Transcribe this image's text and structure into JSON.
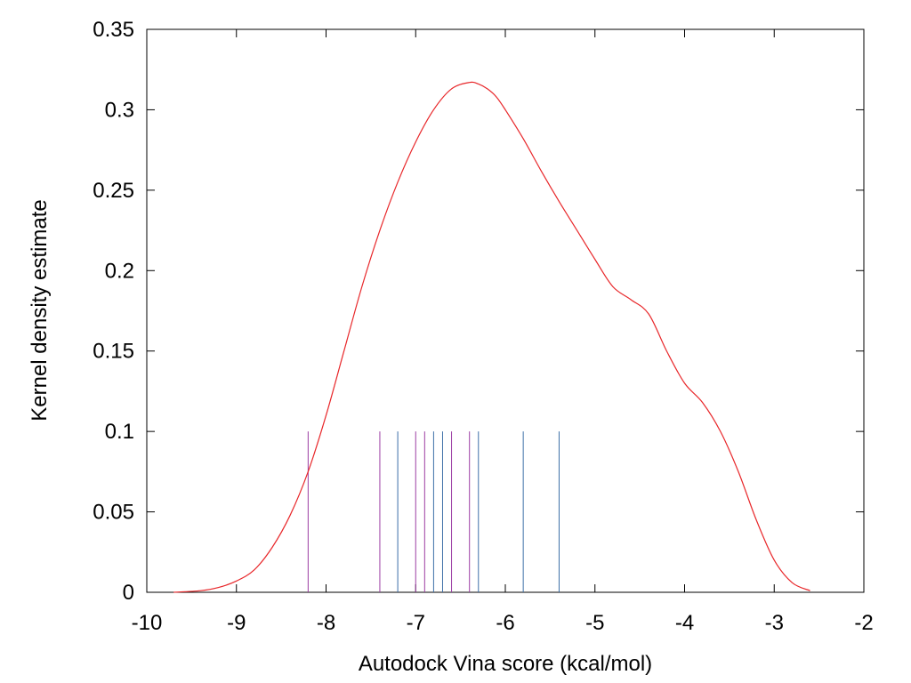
{
  "chart_data": {
    "type": "line",
    "title": "",
    "xlabel": "Autodock Vina score (kcal/mol)",
    "ylabel": "Kernel density estimate",
    "xlim": [
      -10,
      -2
    ],
    "ylim": [
      0,
      0.35
    ],
    "grid": false,
    "x_ticks": [
      -10,
      -9,
      -8,
      -7,
      -6,
      -5,
      -4,
      -3,
      -2
    ],
    "x_tick_labels": [
      "-10",
      "-9",
      "-8",
      "-7",
      "-6",
      "-5",
      "-4",
      "-3",
      "-2"
    ],
    "y_ticks": [
      0,
      0.05,
      0.1,
      0.15,
      0.2,
      0.25,
      0.3,
      0.35
    ],
    "y_tick_labels": [
      "0",
      "0.05",
      "0.1",
      "0.15",
      "0.2",
      "0.25",
      "0.3",
      "0.35"
    ],
    "series": [
      {
        "color": "#e8272a",
        "x": [
          -9.7,
          -9.4,
          -9.2,
          -9.0,
          -8.8,
          -8.6,
          -8.4,
          -8.2,
          -8.0,
          -7.8,
          -7.6,
          -7.4,
          -7.2,
          -7.0,
          -6.8,
          -6.6,
          -6.4,
          -6.3,
          -6.2,
          -6.1,
          -6.0,
          -5.8,
          -5.6,
          -5.4,
          -5.2,
          -5.0,
          -4.8,
          -4.6,
          -4.4,
          -4.2,
          -4.0,
          -3.8,
          -3.6,
          -3.4,
          -3.2,
          -3.0,
          -2.8,
          -2.6
        ],
        "y": [
          0.0,
          0.001,
          0.003,
          0.007,
          0.014,
          0.028,
          0.048,
          0.075,
          0.11,
          0.15,
          0.19,
          0.225,
          0.255,
          0.28,
          0.3,
          0.313,
          0.317,
          0.316,
          0.313,
          0.308,
          0.3,
          0.282,
          0.262,
          0.243,
          0.225,
          0.207,
          0.19,
          0.182,
          0.173,
          0.15,
          0.13,
          0.118,
          0.1,
          0.075,
          0.045,
          0.02,
          0.006,
          0.001
        ]
      }
    ],
    "rug": {
      "height": 0.1,
      "lines": [
        {
          "x": -8.2,
          "color": "#9c3da3"
        },
        {
          "x": -7.4,
          "color": "#9c3da3"
        },
        {
          "x": -7.2,
          "color": "#3d6fa8"
        },
        {
          "x": -7.0,
          "color": "#9c3da3"
        },
        {
          "x": -6.9,
          "color": "#9c3da3"
        },
        {
          "x": -6.8,
          "color": "#3d6fa8"
        },
        {
          "x": -6.7,
          "color": "#3d6fa8"
        },
        {
          "x": -6.6,
          "color": "#9c3da3"
        },
        {
          "x": -6.4,
          "color": "#9c3da3"
        },
        {
          "x": -6.3,
          "color": "#3d6fa8"
        },
        {
          "x": -5.8,
          "color": "#3d6fa8"
        },
        {
          "x": -5.4,
          "color": "#3d6fa8"
        }
      ]
    }
  }
}
